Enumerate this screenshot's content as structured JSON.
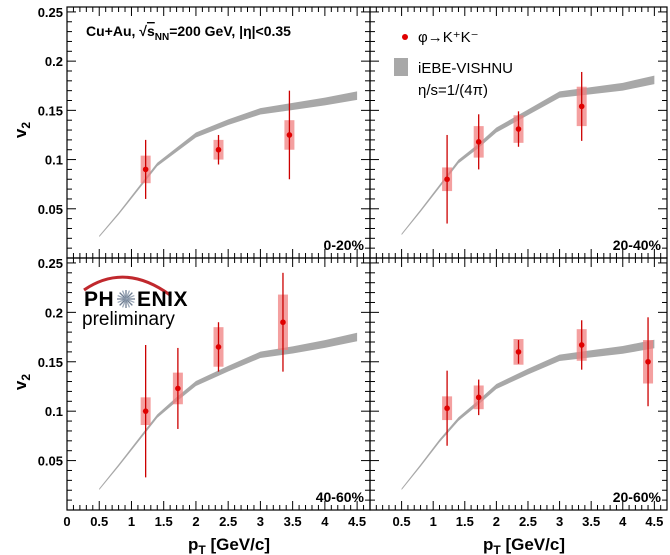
{
  "chart_data": [
    {
      "type": "scatter",
      "panel_label": "0-20%",
      "header": "Cu+Au,  √s_NN=200 GeV, |η|<0.35",
      "header_parts": {
        "system": "Cu+Au,",
        "sqrt": "√",
        "s": "s",
        "nn": "NN",
        "rest": "=200 GeV, |η|<0.35"
      },
      "xlim": [
        0,
        4.7
      ],
      "ylim": [
        0,
        0.255
      ],
      "data": [
        {
          "x": 1.22,
          "y": 0.09,
          "stat_err": 0.03,
          "sys_err": 0.014
        },
        {
          "x": 2.35,
          "y": 0.11,
          "stat_err": 0.015,
          "sys_err": 0.01
        },
        {
          "x": 3.45,
          "y": 0.125,
          "stat_err": 0.045,
          "sys_err": 0.015
        }
      ],
      "model": {
        "x": [
          0.5,
          0.8,
          1.1,
          1.4,
          1.7,
          2.0,
          2.5,
          3.0,
          3.5,
          4.0,
          4.5
        ],
        "y": [
          0.022,
          0.045,
          0.07,
          0.095,
          0.11,
          0.125,
          0.138,
          0.149,
          0.154,
          0.159,
          0.165
        ]
      }
    },
    {
      "type": "scatter",
      "panel_label": "20-40%",
      "xlim": [
        0,
        4.7
      ],
      "ylim": [
        0,
        0.255
      ],
      "data": [
        {
          "x": 1.22,
          "y": 0.08,
          "stat_err": 0.045,
          "sys_err": 0.012
        },
        {
          "x": 1.72,
          "y": 0.118,
          "stat_err": 0.028,
          "sys_err": 0.016
        },
        {
          "x": 2.35,
          "y": 0.131,
          "stat_err": 0.018,
          "sys_err": 0.014
        },
        {
          "x": 3.35,
          "y": 0.154,
          "stat_err": 0.035,
          "sys_err": 0.02
        }
      ],
      "model": {
        "x": [
          0.5,
          0.8,
          1.1,
          1.4,
          1.7,
          2.0,
          2.5,
          3.0,
          3.5,
          4.0,
          4.5
        ],
        "y": [
          0.024,
          0.048,
          0.073,
          0.098,
          0.113,
          0.13,
          0.148,
          0.166,
          0.17,
          0.174,
          0.181
        ]
      },
      "legend": {
        "marker_label": "φ→K⁺K⁻",
        "band_label": "iEBE-VISHNU",
        "band_sublabel": "η/s=1/(4π)"
      }
    },
    {
      "type": "scatter",
      "panel_label": "40-60%",
      "xlim": [
        0,
        4.7
      ],
      "ylim": [
        0,
        0.255
      ],
      "data": [
        {
          "x": 1.22,
          "y": 0.1,
          "stat_err": 0.067,
          "sys_err": 0.014
        },
        {
          "x": 1.72,
          "y": 0.123,
          "stat_err": 0.041,
          "sys_err": 0.016
        },
        {
          "x": 2.35,
          "y": 0.165,
          "stat_err": 0.025,
          "sys_err": 0.02
        },
        {
          "x": 3.35,
          "y": 0.19,
          "stat_err": 0.05,
          "sys_err": 0.028
        }
      ],
      "model": {
        "x": [
          0.5,
          0.8,
          1.1,
          1.4,
          1.7,
          2.0,
          2.5,
          3.0,
          3.5,
          4.0,
          4.5
        ],
        "y": [
          0.021,
          0.045,
          0.07,
          0.095,
          0.112,
          0.128,
          0.143,
          0.157,
          0.162,
          0.168,
          0.175
        ]
      },
      "logo": {
        "text_left": "PH",
        "text_right": "ENIX",
        "subtitle": "preliminary"
      }
    },
    {
      "type": "scatter",
      "panel_label": "20-60%",
      "xlim": [
        0,
        4.7
      ],
      "ylim": [
        0,
        0.255
      ],
      "data": [
        {
          "x": 1.22,
          "y": 0.103,
          "stat_err": 0.038,
          "sys_err": 0.012
        },
        {
          "x": 1.72,
          "y": 0.114,
          "stat_err": 0.018,
          "sys_err": 0.012
        },
        {
          "x": 2.35,
          "y": 0.16,
          "stat_err": 0.012,
          "sys_err": 0.013
        },
        {
          "x": 3.35,
          "y": 0.167,
          "stat_err": 0.025,
          "sys_err": 0.016
        },
        {
          "x": 4.4,
          "y": 0.15,
          "stat_err": 0.045,
          "sys_err": 0.022
        }
      ],
      "model": {
        "x": [
          0.5,
          0.8,
          1.1,
          1.4,
          1.7,
          2.0,
          2.5,
          3.0,
          3.5,
          4.0,
          4.5
        ],
        "y": [
          0.021,
          0.045,
          0.07,
          0.092,
          0.108,
          0.125,
          0.14,
          0.154,
          0.158,
          0.162,
          0.168
        ]
      }
    }
  ],
  "axes": {
    "ylabel": "v",
    "ylabel_sub": "2",
    "xlabel": "p",
    "xlabel_sub": "T",
    "xlabel_unit": " [GeV/c]",
    "yticks": [
      "0.05",
      "0.1",
      "0.15",
      "0.2",
      "0.25"
    ],
    "yticks_values": [
      0.05,
      0.1,
      0.15,
      0.2,
      0.25
    ],
    "xticks_left": [
      "0",
      "0.5",
      "1",
      "1.5",
      "2",
      "2.5",
      "3",
      "3.5",
      "4",
      "4.5"
    ],
    "xticks_left_values": [
      0,
      0.5,
      1,
      1.5,
      2,
      2.5,
      3,
      3.5,
      4,
      4.5
    ],
    "xticks_right": [
      "0.5",
      "1",
      "1.5",
      "2",
      "2.5",
      "3",
      "3.5",
      "4",
      "4.5"
    ],
    "xticks_right_values": [
      0.5,
      1,
      1.5,
      2,
      2.5,
      3,
      3.5,
      4,
      4.5
    ]
  },
  "colors": {
    "marker": "#e00000",
    "stat_err": "#cc0000",
    "sys_box": "#f08080",
    "band": "#a8a8a8",
    "frame": "#000000"
  }
}
